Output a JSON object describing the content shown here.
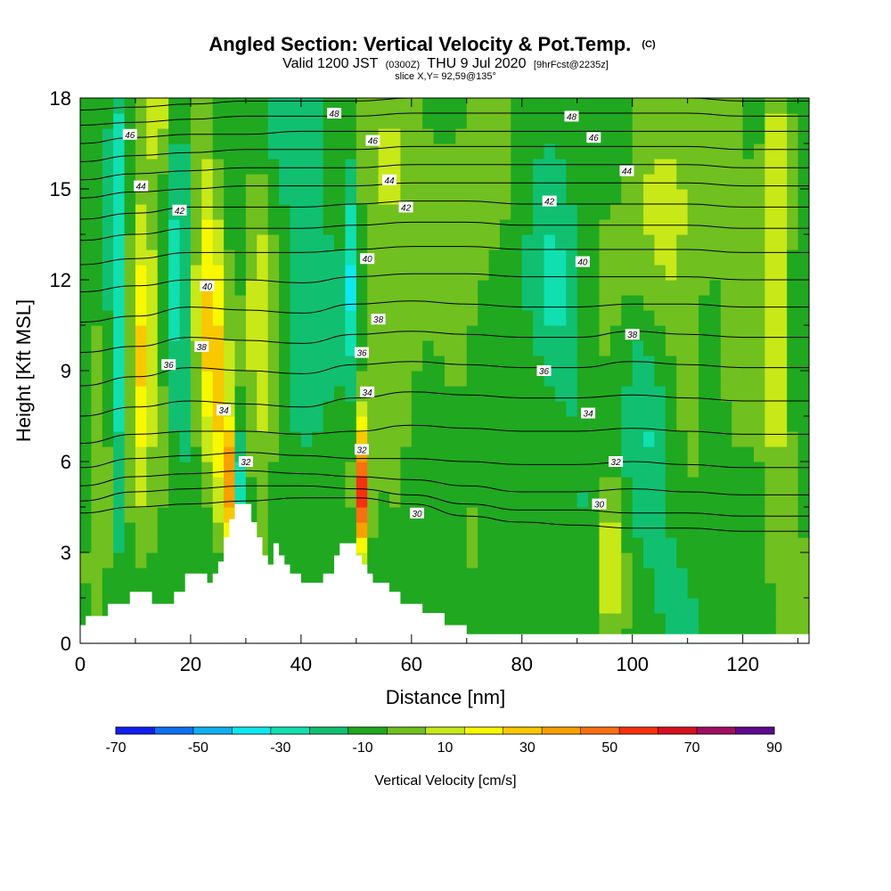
{
  "title": {
    "main": "Angled Section: Vertical Velocity & Pot.Temp.",
    "main_suffix": "(C)",
    "valid_prefix": "Valid 1200 JST",
    "valid_zone": "(0300Z)",
    "valid_date": "THU 9 Jul 2020",
    "forecast": "[9hrFcst@2235z]",
    "slice": "slice X,Y= 92,59@135°"
  },
  "chart_data": {
    "type": "heatmap",
    "xlabel": "Distance [nm]",
    "ylabel": "Height [Kft MSL]",
    "xlim": [
      0,
      132
    ],
    "ylim": [
      0,
      18
    ],
    "x_ticks": [
      {
        "v": 0,
        "label": "0"
      },
      {
        "v": 20,
        "label": "20"
      },
      {
        "v": 40,
        "label": "40"
      },
      {
        "v": 60,
        "label": "60"
      },
      {
        "v": 80,
        "label": "80"
      },
      {
        "v": 100,
        "label": "100"
      },
      {
        "v": 120,
        "label": "120"
      }
    ],
    "y_ticks": [
      {
        "v": 0,
        "label": "0"
      },
      {
        "v": 3,
        "label": "3"
      },
      {
        "v": 6,
        "label": "6"
      },
      {
        "v": 9,
        "label": "9"
      },
      {
        "v": 12,
        "label": "12"
      },
      {
        "v": 15,
        "label": "15"
      },
      {
        "v": 18,
        "label": "18"
      }
    ],
    "colorbar": {
      "label": "Vertical Velocity [cm/s]",
      "min": -70,
      "max": 90,
      "step": 10,
      "colors": [
        "#1020f0",
        "#1070f0",
        "#10b0f0",
        "#10e8f0",
        "#10e0b0",
        "#10c070",
        "#20a820",
        "#70c020",
        "#c8e818",
        "#f8f800",
        "#f8c800",
        "#f8a000",
        "#f87010",
        "#f83010",
        "#d81020",
        "#a01060",
        "#600890"
      ],
      "tick_labels": [
        {
          "v": -70,
          "label": "-70"
        },
        {
          "v": -50,
          "label": "-50"
        },
        {
          "v": -30,
          "label": "-30"
        },
        {
          "v": -10,
          "label": "-10"
        },
        {
          "v": 10,
          "label": "10"
        },
        {
          "v": 30,
          "label": "30"
        },
        {
          "v": 50,
          "label": "50"
        },
        {
          "v": 70,
          "label": "70"
        },
        {
          "v": 90,
          "label": "90"
        }
      ]
    },
    "field": {
      "background_value": -5,
      "features": [
        {
          "x": 7,
          "y": 12.0,
          "sx": 1.4,
          "sy": 5.5,
          "amp": -28
        },
        {
          "x": 10,
          "y": 8.0,
          "sx": 1.5,
          "sy": 3.5,
          "amp": 20
        },
        {
          "x": 12,
          "y": 10.5,
          "sx": 2.0,
          "sy": 3.0,
          "amp": 25
        },
        {
          "x": 4,
          "y": 7.0,
          "sx": 1.8,
          "sy": 3.0,
          "amp": 18
        },
        {
          "x": 14,
          "y": 17.5,
          "sx": 2.0,
          "sy": 1.5,
          "amp": 20
        },
        {
          "x": 18,
          "y": 13.0,
          "sx": 1.5,
          "sy": 5.0,
          "amp": -18
        },
        {
          "x": 23,
          "y": 11.5,
          "sx": 2.0,
          "sy": 3.5,
          "amp": 30
        },
        {
          "x": 25,
          "y": 7.5,
          "sx": 1.5,
          "sy": 3.0,
          "amp": 22
        },
        {
          "x": 27,
          "y": 5.3,
          "sx": 0.9,
          "sy": 1.4,
          "amp": 45
        },
        {
          "x": 29,
          "y": 5.3,
          "sx": 0.9,
          "sy": 1.5,
          "amp": -25
        },
        {
          "x": 33,
          "y": 10.5,
          "sx": 2.2,
          "sy": 4.0,
          "amp": 28
        },
        {
          "x": 35,
          "y": 15.0,
          "sx": 2.0,
          "sy": 3.0,
          "amp": -15
        },
        {
          "x": 41,
          "y": 12.0,
          "sx": 2.5,
          "sy": 6.0,
          "amp": -12
        },
        {
          "x": 49,
          "y": 11.0,
          "sx": 1.0,
          "sy": 3.5,
          "amp": -30
        },
        {
          "x": 51,
          "y": 5.0,
          "sx": 1.0,
          "sy": 1.6,
          "amp": 70
        },
        {
          "x": 49,
          "y": 8.0,
          "sx": 1.0,
          "sy": 2.0,
          "amp": 15
        },
        {
          "x": 58,
          "y": 12.0,
          "sx": 3.0,
          "sy": 5.0,
          "amp": 12
        },
        {
          "x": 55,
          "y": 16.0,
          "sx": 3.0,
          "sy": 2.5,
          "amp": 15
        },
        {
          "x": 70,
          "y": 14.0,
          "sx": 4.0,
          "sy": 4.0,
          "amp": 12
        },
        {
          "x": 86,
          "y": 11.5,
          "sx": 4.0,
          "sy": 2.5,
          "amp": -15
        },
        {
          "x": 96,
          "y": 2.5,
          "sx": 1.6,
          "sy": 2.0,
          "amp": 25
        },
        {
          "x": 102,
          "y": 7.0,
          "sx": 3.0,
          "sy": 3.0,
          "amp": -15
        },
        {
          "x": 104,
          "y": 13.0,
          "sx": 6.0,
          "sy": 3.5,
          "amp": 14
        },
        {
          "x": 113,
          "y": 15.5,
          "sx": 4.0,
          "sy": 3.0,
          "amp": 10
        },
        {
          "x": 120,
          "y": 10.0,
          "sx": 3.0,
          "sy": 4.0,
          "amp": 10
        },
        {
          "x": 126,
          "y": 11.0,
          "sx": 1.5,
          "sy": 4.5,
          "amp": 22
        },
        {
          "x": 126,
          "y": 16.5,
          "sx": 2.0,
          "sy": 2.5,
          "amp": 15
        },
        {
          "x": 129,
          "y": 4.0,
          "sx": 2.0,
          "sy": 4.0,
          "amp": 8
        },
        {
          "x": 110,
          "y": 2.0,
          "sx": 6.0,
          "sy": 2.0,
          "amp": -4
        }
      ]
    },
    "terrain": [
      [
        0,
        0.6
      ],
      [
        1,
        0.6
      ],
      [
        1,
        0.9
      ],
      [
        5,
        0.9
      ],
      [
        5,
        1.3
      ],
      [
        9,
        1.3
      ],
      [
        9,
        1.7
      ],
      [
        13,
        1.7
      ],
      [
        13,
        1.3
      ],
      [
        17,
        1.3
      ],
      [
        17,
        1.7
      ],
      [
        19,
        1.7
      ],
      [
        19,
        2.3
      ],
      [
        23,
        2.3
      ],
      [
        23,
        2.0
      ],
      [
        24,
        2.0
      ],
      [
        24,
        2.3
      ],
      [
        25,
        2.3
      ],
      [
        25,
        2.7
      ],
      [
        26,
        2.7
      ],
      [
        26,
        3.5
      ],
      [
        27,
        3.5
      ],
      [
        27,
        4.1
      ],
      [
        28,
        4.1
      ],
      [
        28,
        4.6
      ],
      [
        31,
        4.6
      ],
      [
        31,
        4.0
      ],
      [
        32,
        4.0
      ],
      [
        32,
        3.5
      ],
      [
        33,
        3.5
      ],
      [
        33,
        2.9
      ],
      [
        34,
        2.9
      ],
      [
        34,
        2.6
      ],
      [
        35,
        2.6
      ],
      [
        35,
        3.3
      ],
      [
        36,
        3.3
      ],
      [
        36,
        2.9
      ],
      [
        37,
        2.9
      ],
      [
        37,
        2.6
      ],
      [
        38,
        2.6
      ],
      [
        38,
        2.3
      ],
      [
        40,
        2.3
      ],
      [
        40,
        2.0
      ],
      [
        44,
        2.0
      ],
      [
        44,
        2.3
      ],
      [
        46,
        2.3
      ],
      [
        46,
        2.9
      ],
      [
        47,
        2.9
      ],
      [
        47,
        3.3
      ],
      [
        50,
        3.3
      ],
      [
        50,
        2.9
      ],
      [
        51,
        2.9
      ],
      [
        51,
        2.6
      ],
      [
        52,
        2.6
      ],
      [
        52,
        2.3
      ],
      [
        53,
        2.3
      ],
      [
        53,
        2.0
      ],
      [
        56,
        2.0
      ],
      [
        56,
        1.7
      ],
      [
        58,
        1.7
      ],
      [
        58,
        1.3
      ],
      [
        62,
        1.3
      ],
      [
        62,
        1.0
      ],
      [
        66,
        1.0
      ],
      [
        66,
        0.6
      ],
      [
        70,
        0.6
      ],
      [
        70,
        0.3
      ],
      [
        132,
        0.3
      ]
    ],
    "isentropes": [
      {
        "theta": 30,
        "y": [
          4.3,
          4.5,
          4.6,
          4.7,
          4.8,
          4.8,
          4.6,
          4.2,
          4.0,
          3.9,
          3.8,
          3.8,
          3.7,
          3.7
        ]
      },
      {
        "theta": 31,
        "y": [
          4.7,
          5.0,
          5.1,
          5.2,
          5.2,
          5.1,
          4.9,
          4.6,
          4.4,
          4.4,
          4.3,
          4.3,
          4.2,
          4.2
        ]
      },
      {
        "theta": 32,
        "y": [
          5.2,
          5.5,
          5.6,
          5.7,
          5.6,
          5.5,
          5.4,
          5.2,
          5.0,
          5.0,
          5.1,
          5.0,
          4.9,
          4.9
        ]
      },
      {
        "theta": 33,
        "y": [
          5.8,
          6.1,
          6.2,
          6.3,
          6.2,
          6.1,
          6.1,
          6.0,
          5.9,
          5.9,
          6.0,
          5.9,
          5.8,
          5.8
        ]
      },
      {
        "theta": 34,
        "y": [
          6.6,
          6.9,
          7.0,
          7.0,
          6.9,
          7.0,
          7.2,
          7.1,
          7.0,
          7.0,
          7.1,
          7.0,
          6.9,
          6.9
        ]
      },
      {
        "theta": 35,
        "y": [
          7.5,
          7.8,
          8.0,
          7.9,
          7.8,
          8.1,
          8.3,
          8.2,
          8.1,
          8.1,
          8.2,
          8.1,
          8.0,
          8.0
        ]
      },
      {
        "theta": 36,
        "y": [
          8.5,
          8.8,
          9.1,
          9.0,
          8.9,
          9.2,
          9.3,
          9.2,
          9.1,
          9.1,
          9.3,
          9.2,
          9.1,
          9.1
        ]
      },
      {
        "theta": 37,
        "y": [
          9.6,
          9.8,
          10.1,
          10.0,
          9.9,
          10.2,
          10.3,
          10.2,
          10.1,
          10.1,
          10.3,
          10.2,
          10.1,
          10.1
        ]
      },
      {
        "theta": 38,
        "y": [
          10.6,
          10.8,
          11.1,
          11.0,
          10.9,
          11.2,
          11.3,
          11.2,
          11.1,
          11.1,
          11.2,
          11.2,
          11.1,
          11.1
        ]
      },
      {
        "theta": 39,
        "y": [
          11.6,
          11.8,
          12.0,
          12.0,
          11.9,
          12.1,
          12.2,
          12.2,
          12.1,
          12.1,
          12.1,
          12.1,
          12.0,
          12.0
        ]
      },
      {
        "theta": 40,
        "y": [
          12.5,
          12.7,
          12.9,
          12.9,
          12.9,
          13.0,
          13.1,
          13.1,
          13.0,
          13.0,
          13.0,
          13.0,
          12.9,
          12.9
        ]
      },
      {
        "theta": 41,
        "y": [
          13.3,
          13.5,
          13.7,
          13.7,
          13.7,
          13.8,
          13.9,
          13.9,
          13.8,
          13.8,
          13.8,
          13.8,
          13.7,
          13.7
        ]
      },
      {
        "theta": 42,
        "y": [
          14.0,
          14.2,
          14.4,
          14.4,
          14.4,
          14.5,
          14.6,
          14.6,
          14.5,
          14.5,
          14.5,
          14.5,
          14.4,
          14.4
        ]
      },
      {
        "theta": 43,
        "y": [
          14.7,
          14.9,
          15.0,
          15.1,
          15.1,
          15.1,
          15.2,
          15.2,
          15.2,
          15.2,
          15.2,
          15.2,
          15.1,
          15.1
        ]
      },
      {
        "theta": 44,
        "y": [
          15.3,
          15.5,
          15.6,
          15.7,
          15.7,
          15.7,
          15.8,
          15.8,
          15.8,
          15.8,
          15.8,
          15.8,
          15.7,
          15.7
        ]
      },
      {
        "theta": 45,
        "y": [
          15.9,
          16.1,
          16.2,
          16.3,
          16.3,
          16.3,
          16.4,
          16.4,
          16.4,
          16.4,
          16.4,
          16.4,
          16.3,
          16.3
        ]
      },
      {
        "theta": 46,
        "y": [
          16.5,
          16.7,
          16.8,
          16.8,
          16.9,
          16.9,
          16.9,
          16.9,
          16.9,
          16.9,
          16.9,
          16.9,
          16.9,
          16.9
        ]
      },
      {
        "theta": 47,
        "y": [
          17.1,
          17.2,
          17.3,
          17.4,
          17.4,
          17.4,
          17.5,
          17.5,
          17.5,
          17.5,
          17.5,
          17.5,
          17.4,
          17.4
        ]
      },
      {
        "theta": 48,
        "y": [
          17.6,
          17.7,
          17.8,
          17.9,
          17.9,
          17.9,
          18.0,
          18.0,
          18.0,
          18.0,
          18.0,
          18.0,
          17.9,
          17.9
        ]
      }
    ],
    "isentrope_x": [
      0,
      10,
      20,
      30,
      40,
      50,
      60,
      70,
      80,
      90,
      100,
      110,
      120,
      132
    ],
    "contour_labels": [
      {
        "x": 46,
        "y": 17.5,
        "label": "48"
      },
      {
        "x": 89,
        "y": 17.4,
        "label": "48"
      },
      {
        "x": 9,
        "y": 16.8,
        "label": "46"
      },
      {
        "x": 53,
        "y": 16.6,
        "label": "46"
      },
      {
        "x": 93,
        "y": 16.7,
        "label": "46"
      },
      {
        "x": 11,
        "y": 15.1,
        "label": "44"
      },
      {
        "x": 56,
        "y": 15.3,
        "label": "44"
      },
      {
        "x": 99,
        "y": 15.6,
        "label": "44"
      },
      {
        "x": 18,
        "y": 14.3,
        "label": "42"
      },
      {
        "x": 59,
        "y": 14.4,
        "label": "42"
      },
      {
        "x": 85,
        "y": 14.6,
        "label": "42"
      },
      {
        "x": 23,
        "y": 11.8,
        "label": "40"
      },
      {
        "x": 52,
        "y": 12.7,
        "label": "40"
      },
      {
        "x": 91,
        "y": 12.6,
        "label": "40"
      },
      {
        "x": 22,
        "y": 9.8,
        "label": "38"
      },
      {
        "x": 54,
        "y": 10.7,
        "label": "38"
      },
      {
        "x": 100,
        "y": 10.2,
        "label": "38"
      },
      {
        "x": 16,
        "y": 9.2,
        "label": "36"
      },
      {
        "x": 51,
        "y": 9.6,
        "label": "36"
      },
      {
        "x": 84,
        "y": 9.0,
        "label": "36"
      },
      {
        "x": 26,
        "y": 7.7,
        "label": "34"
      },
      {
        "x": 52,
        "y": 8.3,
        "label": "34"
      },
      {
        "x": 92,
        "y": 7.6,
        "label": "34"
      },
      {
        "x": 30,
        "y": 6.0,
        "label": "32"
      },
      {
        "x": 51,
        "y": 6.4,
        "label": "32"
      },
      {
        "x": 97,
        "y": 6.0,
        "label": "32"
      },
      {
        "x": 61,
        "y": 4.3,
        "label": "30"
      },
      {
        "x": 94,
        "y": 4.6,
        "label": "30"
      }
    ]
  }
}
